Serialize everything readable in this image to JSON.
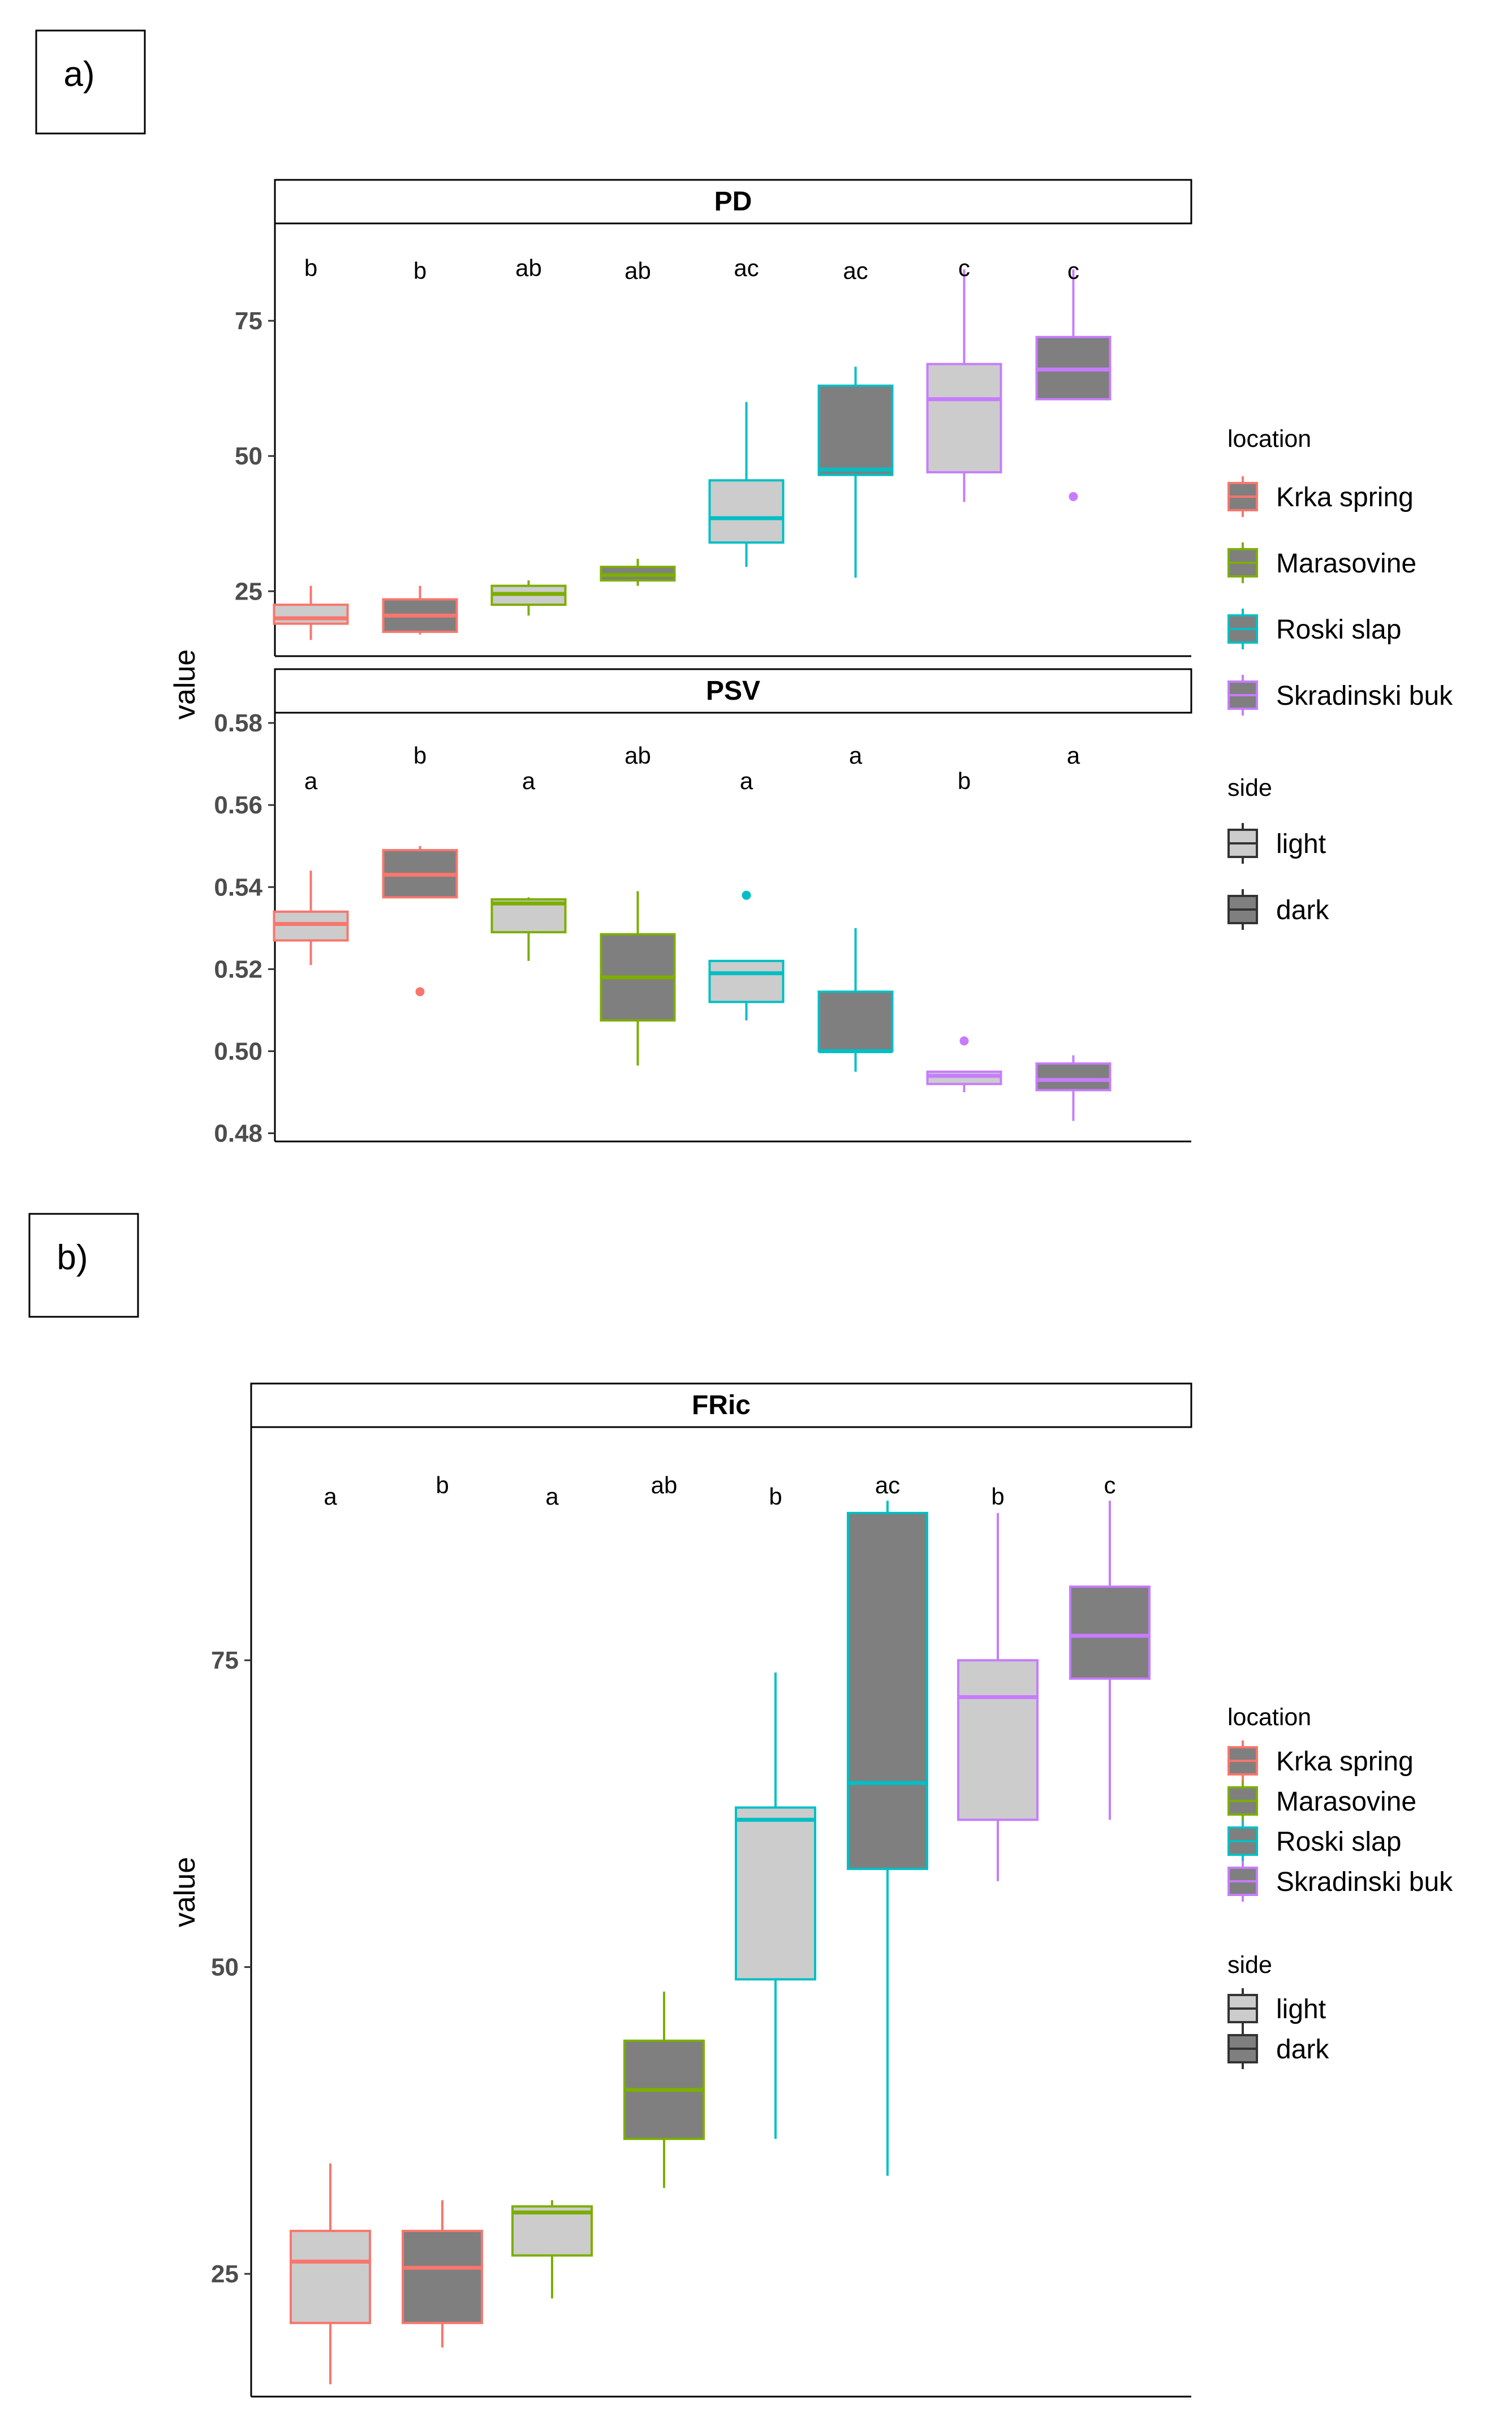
{
  "figure_labels": {
    "a": "a)",
    "b": "b)"
  },
  "colors": {
    "Krka spring": "#f8766d",
    "Marasovine": "#7cae00",
    "Roski slap": "#00bfc4",
    "Skradinski buk": "#c77cff",
    "light": "#cccccc",
    "dark": "#7f7f7f"
  },
  "chart_data": [
    {
      "type": "box",
      "panel": "a",
      "title": "PD",
      "ylabel": "value",
      "ylim": [
        13,
        93
      ],
      "yticks": [
        25,
        50,
        75
      ],
      "ytick_labels": [
        "25",
        "50",
        "75"
      ],
      "legend": {
        "location_title": "location",
        "locations": [
          "Krka spring",
          "Marasovine",
          "Roski slap",
          "Skradinski buk"
        ],
        "side_title": "side",
        "sides": [
          "light",
          "dark"
        ]
      },
      "boxes": [
        {
          "location": "Krka spring",
          "side": "light",
          "min": 16,
          "q1": 19,
          "median": 20,
          "q3": 22.5,
          "max": 26,
          "letter": "b"
        },
        {
          "location": "Krka spring",
          "side": "dark",
          "min": 17,
          "q1": 17.5,
          "median": 20.5,
          "q3": 23.5,
          "max": 26,
          "letter": "b"
        },
        {
          "location": "Marasovine",
          "side": "light",
          "min": 20.5,
          "q1": 22.5,
          "median": 24.5,
          "q3": 26,
          "max": 27,
          "letter": "ab"
        },
        {
          "location": "Marasovine",
          "side": "dark",
          "min": 26,
          "q1": 27,
          "median": 28,
          "q3": 29.5,
          "max": 31,
          "letter": "ab"
        },
        {
          "location": "Roski slap",
          "side": "light",
          "min": 29.5,
          "q1": 34,
          "median": 38.5,
          "q3": 45.5,
          "max": 60,
          "letter": "ac"
        },
        {
          "location": "Roski slap",
          "side": "dark",
          "min": 27.5,
          "q1": 46.5,
          "median": 47.5,
          "q3": 63,
          "max": 66.5,
          "letter": "ac"
        },
        {
          "location": "Skradinski buk",
          "side": "light",
          "min": 41.5,
          "q1": 47,
          "median": 60.5,
          "q3": 67,
          "max": 84.5,
          "letter": "c"
        },
        {
          "location": "Skradinski buk",
          "side": "dark",
          "min": 60.5,
          "q1": 60.5,
          "median": 66,
          "q3": 72,
          "max": 84.5,
          "outliers": [
            42.5
          ],
          "letter": "c"
        }
      ]
    },
    {
      "type": "box",
      "panel": "a",
      "title": "PSV",
      "ylabel": "value",
      "ylim": [
        0.478,
        0.5825
      ],
      "yticks": [
        0.48,
        0.5,
        0.52,
        0.54,
        0.56,
        0.58
      ],
      "ytick_labels": [
        "0.48",
        "0.50",
        "0.52",
        "0.54",
        "0.56",
        "0.58"
      ],
      "boxes": [
        {
          "location": "Krka spring",
          "side": "light",
          "min": 0.521,
          "q1": 0.527,
          "median": 0.531,
          "q3": 0.534,
          "max": 0.544,
          "letter": "a"
        },
        {
          "location": "Krka spring",
          "side": "dark",
          "min": 0.5375,
          "q1": 0.5375,
          "median": 0.543,
          "q3": 0.549,
          "max": 0.55,
          "outliers": [
            0.5145
          ],
          "letter": "b"
        },
        {
          "location": "Marasovine",
          "side": "light",
          "min": 0.522,
          "q1": 0.529,
          "median": 0.536,
          "q3": 0.537,
          "max": 0.5375,
          "letter": "a"
        },
        {
          "location": "Marasovine",
          "side": "dark",
          "min": 0.4965,
          "q1": 0.5075,
          "median": 0.518,
          "q3": 0.5285,
          "max": 0.539,
          "letter": "ab"
        },
        {
          "location": "Roski slap",
          "side": "light",
          "min": 0.5075,
          "q1": 0.512,
          "median": 0.519,
          "q3": 0.522,
          "max": 0.522,
          "outliers": [
            0.538
          ],
          "letter": "a"
        },
        {
          "location": "Roski slap",
          "side": "dark",
          "min": 0.495,
          "q1": 0.5,
          "median": 0.5,
          "q3": 0.5145,
          "max": 0.53,
          "letter": "a"
        },
        {
          "location": "Skradinski buk",
          "side": "light",
          "min": 0.49,
          "q1": 0.492,
          "median": 0.494,
          "q3": 0.495,
          "max": 0.495,
          "outliers": [
            0.5025
          ],
          "letter": "b"
        },
        {
          "location": "Skradinski buk",
          "side": "dark",
          "min": 0.483,
          "q1": 0.4905,
          "median": 0.493,
          "q3": 0.497,
          "max": 0.499,
          "letter": "a"
        }
      ]
    },
    {
      "type": "box",
      "panel": "b",
      "title": "FRic",
      "ylabel": "value",
      "ylim": [
        15,
        94
      ],
      "yticks": [
        25,
        50,
        75
      ],
      "ytick_labels": [
        "25",
        "50",
        "75"
      ],
      "legend": {
        "location_title": "location",
        "locations": [
          "Krka spring",
          "Marasovine",
          "Roski slap",
          "Skradinski buk"
        ],
        "side_title": "side",
        "sides": [
          "light",
          "dark"
        ]
      },
      "boxes": [
        {
          "location": "Krka spring",
          "side": "light",
          "min": 16,
          "q1": 21,
          "median": 26,
          "q3": 28.5,
          "max": 34,
          "letter": "a"
        },
        {
          "location": "Krka spring",
          "side": "dark",
          "min": 19,
          "q1": 21,
          "median": 25.5,
          "q3": 28.5,
          "max": 31,
          "letter": "b"
        },
        {
          "location": "Marasovine",
          "side": "light",
          "min": 23,
          "q1": 26.5,
          "median": 30,
          "q3": 30.5,
          "max": 31,
          "letter": "a"
        },
        {
          "location": "Marasovine",
          "side": "dark",
          "min": 32,
          "q1": 36,
          "median": 40,
          "q3": 44,
          "max": 48,
          "letter": "ab"
        },
        {
          "location": "Roski slap",
          "side": "light",
          "min": 36,
          "q1": 49,
          "median": 62,
          "q3": 63,
          "max": 74,
          "letter": "b"
        },
        {
          "location": "Roski slap",
          "side": "dark",
          "min": 33,
          "q1": 58,
          "median": 65,
          "q3": 87,
          "max": 88,
          "letter": "ac"
        },
        {
          "location": "Skradinski buk",
          "side": "light",
          "min": 57,
          "q1": 62,
          "median": 72,
          "q3": 75,
          "max": 87,
          "letter": "b"
        },
        {
          "location": "Skradinski buk",
          "side": "dark",
          "min": 62,
          "q1": 73.5,
          "median": 77,
          "q3": 81,
          "max": 88,
          "letter": "c"
        }
      ]
    }
  ]
}
